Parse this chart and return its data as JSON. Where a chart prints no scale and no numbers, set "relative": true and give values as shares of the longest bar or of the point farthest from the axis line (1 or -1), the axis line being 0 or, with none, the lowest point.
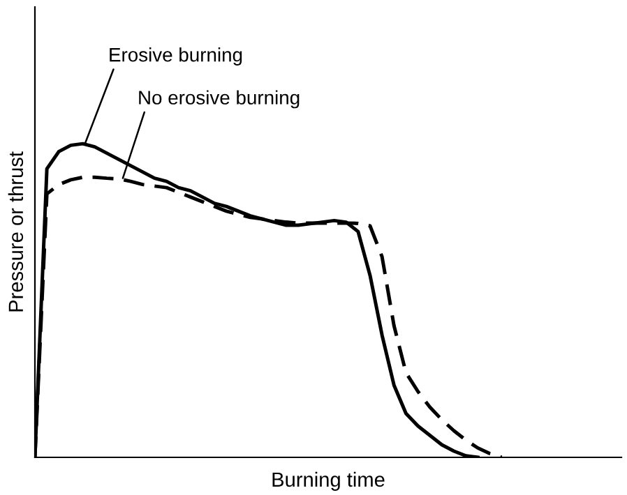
{
  "chart_data": {
    "type": "line",
    "relative": true,
    "xlabel": "Burning time",
    "ylabel": "Pressure or thrust",
    "categories": [
      null,
      null,
      null,
      null,
      null,
      null,
      null,
      null,
      null,
      null,
      null,
      null,
      null,
      null,
      null,
      null,
      null,
      null,
      null,
      null,
      null,
      null,
      null,
      null,
      null,
      null,
      null,
      null,
      null,
      null,
      null,
      null,
      null,
      null,
      null,
      null,
      null,
      null,
      null,
      null,
      null,
      null,
      null,
      null,
      null,
      null,
      null,
      null,
      null,
      null
    ],
    "series": [
      {
        "color": "#000000",
        "line_style": "solid",
        "values": [
          0,
          0.92,
          0.975,
          0.995,
          1.0,
          0.99,
          0.97,
          0.95,
          0.93,
          0.91,
          0.89,
          0.88,
          0.86,
          0.85,
          0.83,
          0.81,
          0.8,
          0.785,
          0.77,
          0.76,
          0.75,
          0.74,
          0.74,
          0.745,
          0.75,
          0.755,
          0.75,
          0.72,
          0.58,
          0.39,
          0.23,
          0.14,
          0.1,
          0.07,
          0.04,
          0.02,
          0.005,
          0,
          null,
          null,
          null,
          null,
          null,
          null,
          null,
          null,
          null,
          null,
          null,
          null
        ]
      },
      {
        "color": "#000000",
        "line_style": "dashed",
        "values": [
          0,
          0.84,
          0.87,
          0.885,
          0.893,
          0.893,
          0.89,
          0.888,
          0.88,
          0.87,
          0.865,
          0.86,
          0.845,
          0.83,
          0.815,
          0.8,
          0.785,
          0.775,
          0.765,
          0.76,
          0.755,
          0.75,
          0.747,
          0.747,
          0.747,
          0.747,
          0.747,
          0.746,
          0.738,
          0.64,
          0.42,
          0.27,
          0.21,
          0.16,
          0.12,
          0.085,
          0.055,
          0.03,
          0.012,
          0,
          null,
          null,
          null,
          null,
          null,
          null,
          null,
          null,
          null,
          null
        ]
      }
    ],
    "annotations": [
      "Erosive burning",
      "No erosive burning"
    ]
  }
}
